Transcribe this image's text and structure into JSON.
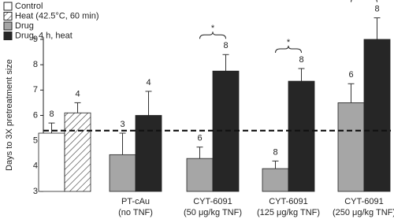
{
  "chart_data": {
    "type": "bar",
    "ylabel": "Days to 3X pretreatment size",
    "categories": [
      null,
      [
        "PT-cAu",
        "(no TNF)"
      ],
      [
        "CYT-6091",
        "(50 μg/kg TNF)"
      ],
      [
        "CYT-6091",
        "(125 μg/kg TNF)"
      ],
      [
        "CYT-6091",
        "(250 μg/kg TNF)"
      ]
    ],
    "series": [
      {
        "name": "Control",
        "color": "#ffffff",
        "values": [
          5.3,
          null,
          null,
          null,
          null
        ],
        "errors": [
          0.4,
          null,
          null,
          null,
          null
        ],
        "n": [
          "8",
          null,
          null,
          null,
          null
        ]
      },
      {
        "name": "Heat (42.5°C, 60 min)",
        "color": "#ffffff",
        "pattern": "hatch",
        "values": [
          6.1,
          null,
          null,
          null,
          null
        ],
        "errors": [
          0.4,
          null,
          null,
          null,
          null
        ],
        "n": [
          "4",
          null,
          null,
          null,
          null
        ]
      },
      {
        "name": "Drug",
        "color": "#a6a6a6",
        "values": [
          null,
          4.45,
          4.3,
          3.9,
          6.5
        ],
        "errors": [
          null,
          0.85,
          0.45,
          0.3,
          0.75
        ],
        "n": [
          null,
          "3",
          "6",
          "8",
          "6"
        ]
      },
      {
        "name": "Drug, 4 h, heat",
        "color": "#262626",
        "values": [
          null,
          6.0,
          7.75,
          7.35,
          9.0
        ],
        "errors": [
          null,
          0.95,
          0.65,
          0.5,
          0.85
        ],
        "n": [
          null,
          "4",
          "8",
          "8",
          "8"
        ]
      }
    ],
    "significance_labels": [
      null,
      null,
      "*",
      "*",
      "*"
    ],
    "reference_line": 5.4,
    "ylim": [
      3,
      9
    ],
    "yticks": [
      3,
      4,
      5,
      6,
      7,
      8,
      9
    ]
  }
}
